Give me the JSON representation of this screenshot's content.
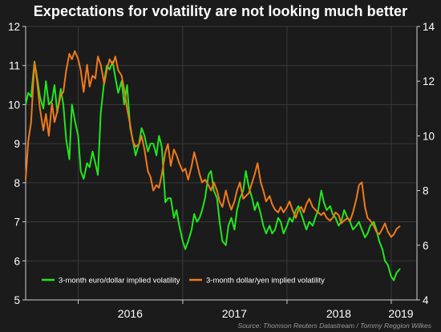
{
  "header": {
    "title": "Expectations for volatility are not looking much better"
  },
  "footer": {
    "source": "Source: Thomson Reuters Datastream / Tommy Reggion Wilkes"
  },
  "colors": {
    "background": "#1b1b1b",
    "grid": "#3a3a3a",
    "euro_series": "#22e61e",
    "yen_series": "#f07a1a"
  },
  "chart_data": {
    "type": "line",
    "title": "Expectations for volatility are not looking much better",
    "grid": true,
    "legend_position": "bottom",
    "x_ticks": [
      "2016",
      "2017",
      "2018",
      "2019"
    ],
    "y_left": {
      "ticks": [
        5,
        6,
        7,
        8,
        9,
        10,
        11,
        12
      ],
      "range": [
        5,
        12
      ]
    },
    "y_right": {
      "ticks": [
        4,
        6,
        8,
        10,
        12,
        14
      ],
      "range": [
        4,
        14
      ]
    },
    "series": [
      {
        "name": "3-month euro/dollar implied volatility",
        "axis": "left",
        "x": [
          "2015-07-01",
          "2015-07-10",
          "2015-07-20",
          "2015-08-01",
          "2015-08-10",
          "2015-08-20",
          "2015-09-01",
          "2015-09-10",
          "2015-09-20",
          "2015-10-01",
          "2015-10-10",
          "2015-10-20",
          "2015-11-01",
          "2015-11-10",
          "2015-11-20",
          "2015-12-01",
          "2015-12-10",
          "2015-12-20",
          "2016-01-01",
          "2016-01-10",
          "2016-01-20",
          "2016-02-01",
          "2016-02-10",
          "2016-02-20",
          "2016-03-01",
          "2016-03-10",
          "2016-03-20",
          "2016-04-01",
          "2016-04-10",
          "2016-04-20",
          "2016-05-01",
          "2016-05-10",
          "2016-05-20",
          "2016-06-01",
          "2016-06-10",
          "2016-06-20",
          "2016-07-01",
          "2016-07-10",
          "2016-07-20",
          "2016-08-01",
          "2016-08-10",
          "2016-08-20",
          "2016-09-01",
          "2016-09-10",
          "2016-09-20",
          "2016-10-01",
          "2016-10-10",
          "2016-10-20",
          "2016-11-01",
          "2016-11-10",
          "2016-11-20",
          "2016-12-01",
          "2016-12-10",
          "2016-12-20",
          "2017-01-01",
          "2017-01-10",
          "2017-01-20",
          "2017-02-01",
          "2017-02-10",
          "2017-02-20",
          "2017-03-01",
          "2017-03-10",
          "2017-03-20",
          "2017-04-01",
          "2017-04-10",
          "2017-04-20",
          "2017-05-01",
          "2017-05-10",
          "2017-05-20",
          "2017-06-01",
          "2017-06-10",
          "2017-06-20",
          "2017-07-01",
          "2017-07-10",
          "2017-07-20",
          "2017-08-01",
          "2017-08-10",
          "2017-08-20",
          "2017-09-01",
          "2017-09-10",
          "2017-09-20",
          "2017-10-01",
          "2017-10-10",
          "2017-10-20",
          "2017-11-01",
          "2017-11-10",
          "2017-11-20",
          "2017-12-01",
          "2017-12-10",
          "2017-12-20",
          "2018-01-01",
          "2018-01-10",
          "2018-01-20",
          "2018-02-01",
          "2018-02-10",
          "2018-02-20",
          "2018-03-01",
          "2018-03-10",
          "2018-03-20",
          "2018-04-01",
          "2018-04-10",
          "2018-04-20",
          "2018-05-01",
          "2018-05-10",
          "2018-05-20",
          "2018-06-01",
          "2018-06-10",
          "2018-06-20",
          "2018-07-01",
          "2018-07-10",
          "2018-07-20",
          "2018-08-01",
          "2018-08-10",
          "2018-08-20",
          "2018-09-01",
          "2018-09-10",
          "2018-09-20",
          "2018-10-01",
          "2018-10-10",
          "2018-10-20",
          "2018-11-01",
          "2018-11-10",
          "2018-11-20",
          "2018-12-01",
          "2018-12-10",
          "2018-12-20",
          "2019-01-01",
          "2019-01-10",
          "2019-01-20",
          "2019-02-01"
        ],
        "values": [
          10.0,
          10.3,
          10.2,
          11.1,
          10.7,
          10.2,
          9.9,
          10.6,
          10.0,
          10.1,
          10.5,
          9.8,
          10.4,
          10.0,
          9.1,
          8.6,
          10.0,
          9.6,
          9.2,
          8.3,
          8.1,
          8.5,
          8.4,
          8.8,
          8.5,
          8.2,
          9.8,
          10.6,
          11.0,
          10.9,
          11.1,
          10.7,
          10.3,
          10.6,
          10.0,
          10.5,
          9.4,
          9.1,
          8.7,
          9.0,
          9.4,
          9.2,
          8.8,
          9.0,
          9.0,
          8.7,
          9.2,
          8.9,
          7.5,
          7.6,
          7.6,
          7.1,
          7.3,
          6.9,
          6.5,
          6.3,
          6.5,
          6.8,
          7.2,
          7.0,
          7.1,
          7.3,
          7.6,
          8.2,
          8.3,
          7.8,
          7.6,
          7.0,
          6.5,
          6.4,
          6.9,
          7.1,
          6.8,
          7.3,
          7.6,
          7.8,
          8.3,
          7.9,
          7.6,
          7.3,
          7.5,
          7.2,
          6.9,
          6.7,
          6.9,
          6.7,
          6.8,
          7.1,
          7.0,
          6.7,
          6.9,
          7.1,
          7.0,
          7.3,
          7.4,
          7.2,
          7.0,
          6.8,
          7.0,
          6.9,
          7.1,
          7.3,
          7.8,
          7.5,
          7.3,
          7.4,
          7.2,
          7.1,
          6.9,
          7.0,
          7.3,
          7.1,
          7.0,
          6.8,
          6.9,
          7.0,
          6.8,
          6.6,
          6.7,
          6.9,
          7.0,
          6.8,
          6.5,
          6.3,
          6.0,
          5.9,
          5.6,
          5.5,
          5.7,
          5.8
        ]
      },
      {
        "name": "3-month dollar/yen implied volatility",
        "axis": "right",
        "x": [
          "2015-07-01",
          "2015-07-10",
          "2015-07-20",
          "2015-08-01",
          "2015-08-10",
          "2015-08-20",
          "2015-09-01",
          "2015-09-10",
          "2015-09-20",
          "2015-10-01",
          "2015-10-10",
          "2015-10-20",
          "2015-11-01",
          "2015-11-10",
          "2015-11-20",
          "2015-12-01",
          "2015-12-10",
          "2015-12-20",
          "2016-01-01",
          "2016-01-10",
          "2016-01-20",
          "2016-02-01",
          "2016-02-10",
          "2016-02-20",
          "2016-03-01",
          "2016-03-10",
          "2016-03-20",
          "2016-04-01",
          "2016-04-10",
          "2016-04-20",
          "2016-05-01",
          "2016-05-10",
          "2016-05-20",
          "2016-06-01",
          "2016-06-10",
          "2016-06-20",
          "2016-07-01",
          "2016-07-10",
          "2016-07-20",
          "2016-08-01",
          "2016-08-10",
          "2016-08-20",
          "2016-09-01",
          "2016-09-10",
          "2016-09-20",
          "2016-10-01",
          "2016-10-10",
          "2016-10-20",
          "2016-11-01",
          "2016-11-10",
          "2016-11-20",
          "2016-12-01",
          "2016-12-10",
          "2016-12-20",
          "2017-01-01",
          "2017-01-10",
          "2017-01-20",
          "2017-02-01",
          "2017-02-10",
          "2017-02-20",
          "2017-03-01",
          "2017-03-10",
          "2017-03-20",
          "2017-04-01",
          "2017-04-10",
          "2017-04-20",
          "2017-05-01",
          "2017-05-10",
          "2017-05-20",
          "2017-06-01",
          "2017-06-10",
          "2017-06-20",
          "2017-07-01",
          "2017-07-10",
          "2017-07-20",
          "2017-08-01",
          "2017-08-10",
          "2017-08-20",
          "2017-09-01",
          "2017-09-10",
          "2017-09-20",
          "2017-10-01",
          "2017-10-10",
          "2017-10-20",
          "2017-11-01",
          "2017-11-10",
          "2017-11-20",
          "2017-12-01",
          "2017-12-10",
          "2017-12-20",
          "2018-01-01",
          "2018-01-10",
          "2018-01-20",
          "2018-02-01",
          "2018-02-10",
          "2018-02-20",
          "2018-03-01",
          "2018-03-10",
          "2018-03-20",
          "2018-04-01",
          "2018-04-10",
          "2018-04-20",
          "2018-05-01",
          "2018-05-10",
          "2018-05-20",
          "2018-06-01",
          "2018-06-10",
          "2018-06-20",
          "2018-07-01",
          "2018-07-10",
          "2018-07-20",
          "2018-08-01",
          "2018-08-10",
          "2018-08-20",
          "2018-09-01",
          "2018-09-10",
          "2018-09-20",
          "2018-10-01",
          "2018-10-10",
          "2018-10-20",
          "2018-11-01",
          "2018-11-10",
          "2018-11-20",
          "2018-12-01",
          "2018-12-10",
          "2018-12-20",
          "2019-01-01",
          "2019-01-10",
          "2019-01-20",
          "2019-02-01"
        ],
        "values": [
          8.4,
          9.8,
          10.5,
          12.7,
          12.0,
          11.0,
          10.2,
          10.8,
          10.0,
          11.2,
          10.5,
          10.9,
          11.5,
          11.6,
          12.4,
          13.0,
          12.8,
          13.1,
          12.8,
          12.4,
          11.6,
          12.6,
          11.8,
          12.2,
          12.1,
          12.9,
          12.6,
          11.9,
          12.4,
          12.8,
          12.6,
          12.9,
          12.4,
          12.2,
          11.7,
          11.0,
          10.4,
          9.8,
          9.6,
          9.7,
          10.0,
          9.5,
          8.7,
          8.5,
          8.0,
          8.2,
          8.1,
          8.6,
          9.4,
          9.7,
          8.9,
          9.5,
          9.3,
          9.0,
          8.7,
          8.8,
          8.4,
          8.9,
          9.4,
          9.0,
          8.6,
          8.3,
          8.4,
          8.2,
          8.0,
          8.3,
          8.0,
          7.6,
          7.4,
          8.0,
          7.6,
          7.3,
          7.6,
          8.0,
          8.3,
          7.7,
          7.8,
          7.9,
          8.3,
          8.6,
          9.0,
          8.3,
          8.0,
          7.6,
          7.8,
          7.5,
          7.3,
          7.2,
          7.4,
          7.2,
          7.4,
          7.6,
          7.3,
          7.0,
          7.3,
          7.4,
          7.2,
          7.5,
          7.7,
          7.4,
          7.3,
          7.2,
          7.1,
          7.2,
          7.0,
          6.9,
          7.0,
          7.2,
          7.1,
          6.8,
          6.9,
          7.0,
          6.9,
          7.2,
          7.7,
          8.2,
          8.3,
          7.4,
          7.0,
          6.9,
          6.7,
          6.5,
          6.4,
          6.6,
          6.8,
          6.5,
          6.3,
          6.4,
          6.6,
          6.7
        ]
      }
    ]
  }
}
